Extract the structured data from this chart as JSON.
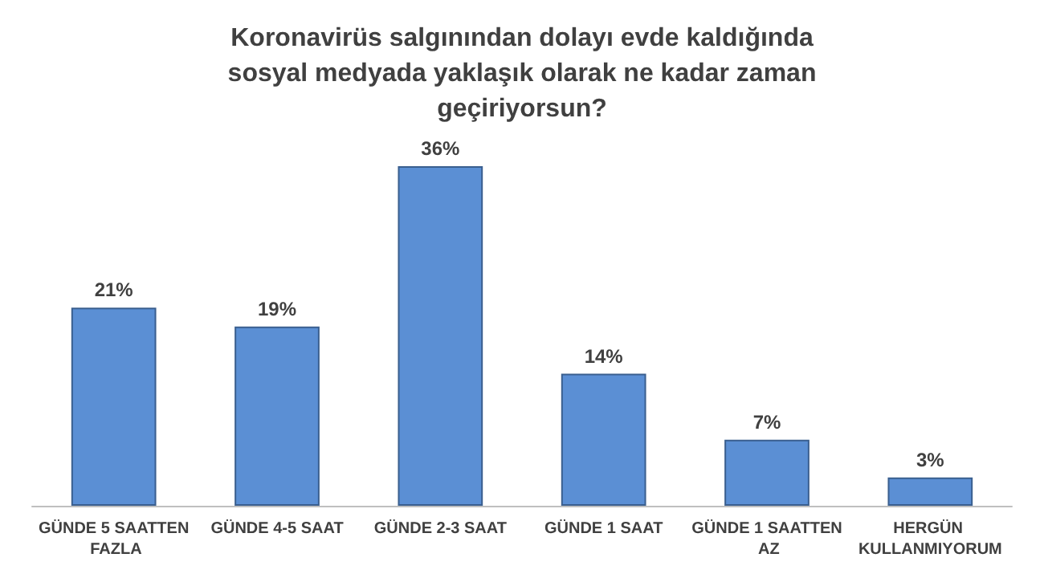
{
  "chart_data": {
    "type": "bar",
    "title": "Koronavirüs salgınından dolayı evde kaldığında sosyal medyada yaklaşık olarak ne kadar zaman geçiriyorsun?",
    "categories": [
      "GÜNDE 5 SAATTEN FAZLA",
      "GÜNDE 4-5 SAAT",
      "GÜNDE 2-3 SAAT",
      "GÜNDE 1 SAAT",
      "GÜNDE 1 SAATTEN AZ",
      "HERGÜN KULLANMIYORUM"
    ],
    "values": [
      21,
      19,
      36,
      14,
      7,
      3
    ],
    "value_labels": [
      "21%",
      "19%",
      "36%",
      "14%",
      "7%",
      "3%"
    ],
    "color": "#5b8fd4",
    "grid": false
  }
}
